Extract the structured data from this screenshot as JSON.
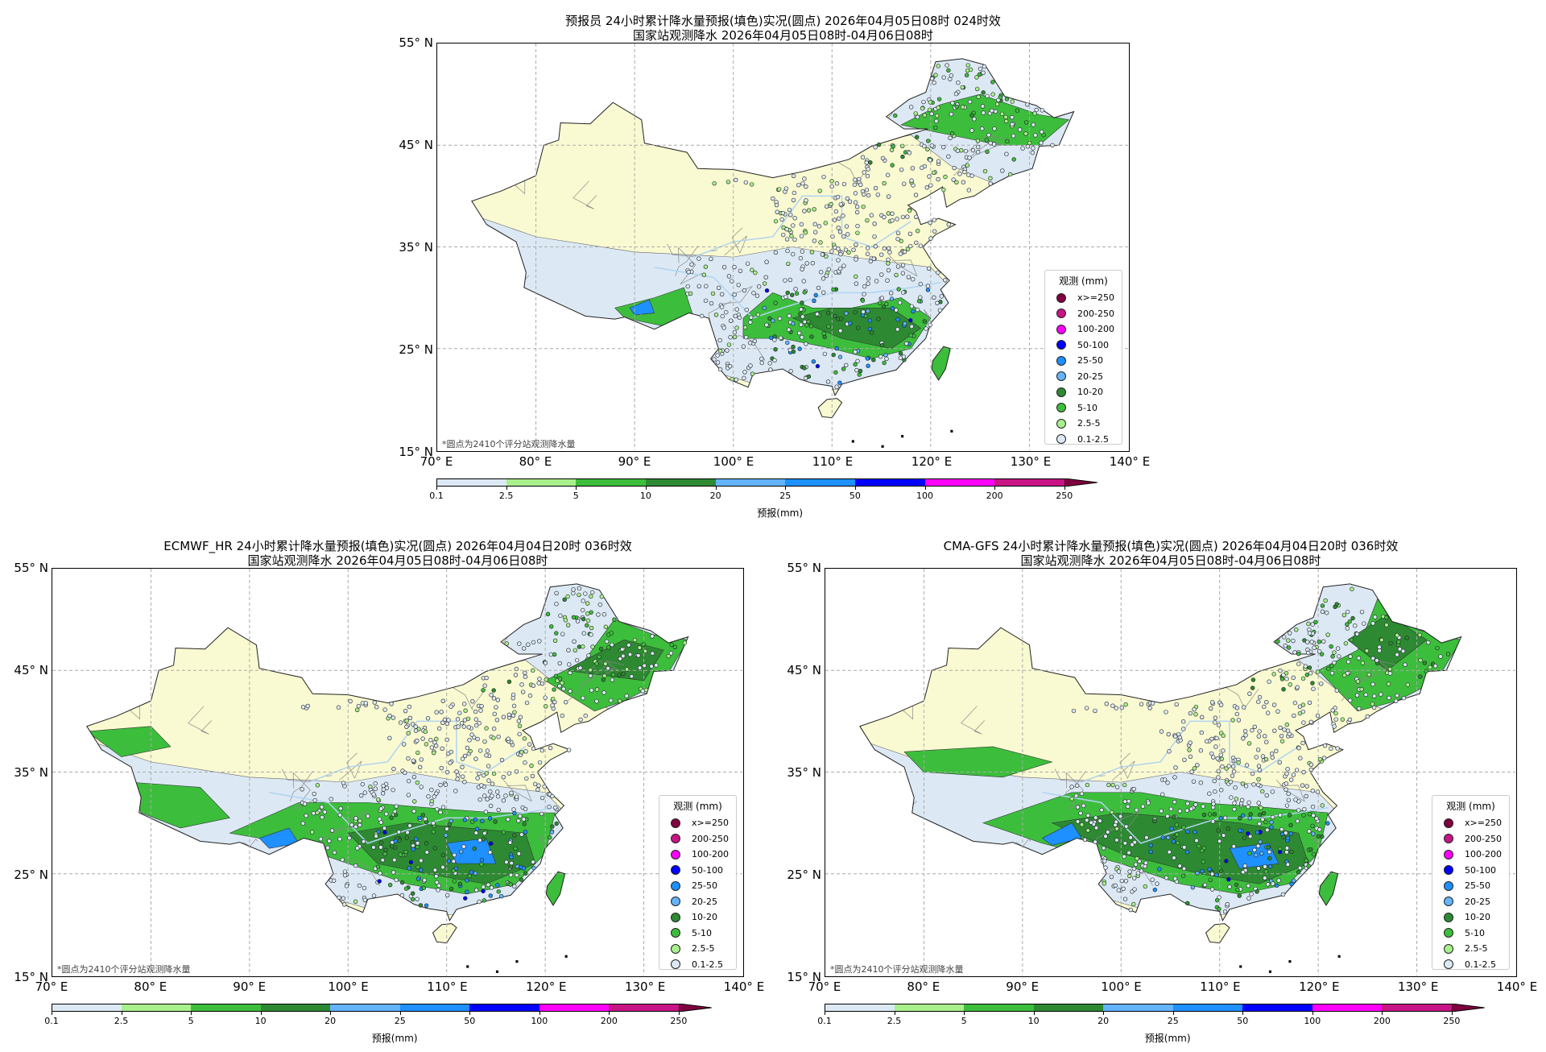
{
  "chart_data": [
    {
      "type": "heatmap",
      "name": "forecaster",
      "title_line1": "预报员 24小时累计降水量预报(填色)实况(圆点) 2026年04月05日08时 024时效",
      "title_line2": "国家站观测降水 2026年04月05日08时-04月06日08时",
      "xlim": [
        70,
        140
      ],
      "ylim": [
        15,
        55
      ],
      "grid": true,
      "legend_placement": "lower-right",
      "note": "*圆点为2410个评分站观测降水量"
    },
    {
      "type": "heatmap",
      "name": "ecmwf",
      "title_line1": "ECMWF_HR 24小时累计降水量预报(填色)实况(圆点) 2026年04月04日20时 036时效",
      "title_line2": "国家站观测降水 2026年04月05日08时-04月06日08时",
      "xlim": [
        70,
        140
      ],
      "ylim": [
        15,
        55
      ],
      "grid": true,
      "legend_placement": "lower-right",
      "note": "*圆点为2410个评分站观测降水量"
    },
    {
      "type": "heatmap",
      "name": "cma-gfs",
      "title_line1": "CMA-GFS 24小时累计降水量预报(填色)实况(圆点) 2026年04月04日20时 036时效",
      "title_line2": "国家站观测降水 2026年04月05日08时-04月06日08时",
      "xlim": [
        70,
        140
      ],
      "ylim": [
        15,
        55
      ],
      "grid": true,
      "legend_placement": "lower-right",
      "note": "*圆点为2410个评分站观测降水量"
    }
  ],
  "x_ticks": [
    "70° E",
    "80° E",
    "90° E",
    "100° E",
    "110° E",
    "120° E",
    "130° E",
    "140° E"
  ],
  "x_tick_values": [
    70,
    80,
    90,
    100,
    110,
    120,
    130,
    140
  ],
  "y_ticks": [
    "55° N",
    "45° N",
    "35° N",
    "25° N",
    "15° N"
  ],
  "y_tick_values": [
    55,
    45,
    35,
    25,
    15
  ],
  "legend": {
    "title": "观测 (mm)",
    "items": [
      {
        "label": "x>=250",
        "color": "#800040"
      },
      {
        "label": "200-250",
        "color": "#c71585"
      },
      {
        "label": "100-200",
        "color": "#ff00ff"
      },
      {
        "label": "50-100",
        "color": "#0000ff"
      },
      {
        "label": "25-50",
        "color": "#1e90ff"
      },
      {
        "label": "20-25",
        "color": "#64b4ff"
      },
      {
        "label": "10-20",
        "color": "#2d8a32"
      },
      {
        "label": "5-10",
        "color": "#3cbe3c"
      },
      {
        "label": "2.5-5",
        "color": "#a8f08c"
      },
      {
        "label": "0.1-2.5",
        "color": "#dce9f5"
      }
    ]
  },
  "colorbar": {
    "title": "预报(mm)",
    "labels": [
      "0.1",
      "2.5",
      "5",
      "10",
      "20",
      "25",
      "50",
      "100",
      "200",
      "250"
    ],
    "colors": [
      "#dce9f5",
      "#a8f08c",
      "#3cbe3c",
      "#2d8a32",
      "#64b4ff",
      "#1e90ff",
      "#0000ff",
      "#ff00ff",
      "#c71585"
    ],
    "extend_color": "#800040"
  },
  "colors": {
    "land": "#fafad2",
    "light_rain": "#dce9f5",
    "border": "#888888",
    "river": "#b0d4f0"
  }
}
